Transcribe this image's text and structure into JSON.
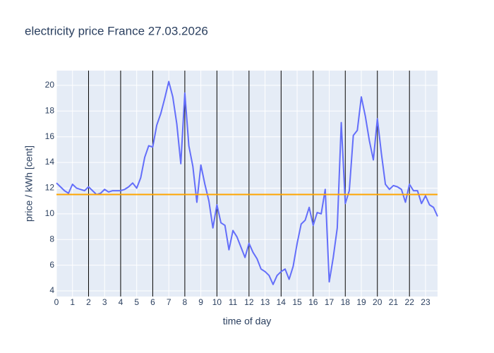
{
  "chart_data": {
    "type": "line",
    "title": "electricity price France 27.03.2026",
    "x_label": "time of day",
    "y_label": "price / kWh [cent]",
    "x": [
      0,
      0.25,
      0.5,
      0.75,
      1,
      1.25,
      1.5,
      1.75,
      2,
      2.25,
      2.5,
      2.75,
      3,
      3.25,
      3.5,
      3.75,
      4,
      4.25,
      4.5,
      4.75,
      5,
      5.25,
      5.5,
      5.75,
      6,
      6.25,
      6.5,
      6.75,
      7,
      7.25,
      7.5,
      7.75,
      8,
      8.25,
      8.5,
      8.75,
      9,
      9.25,
      9.5,
      9.75,
      10,
      10.25,
      10.5,
      10.75,
      11,
      11.25,
      11.5,
      11.75,
      12,
      12.25,
      12.5,
      12.75,
      13,
      13.25,
      13.5,
      13.75,
      14,
      14.25,
      14.5,
      14.75,
      15,
      15.25,
      15.5,
      15.75,
      16,
      16.25,
      16.5,
      16.75,
      17,
      17.25,
      17.5,
      17.75,
      18,
      18.25,
      18.5,
      18.75,
      19,
      19.25,
      19.5,
      19.75,
      20,
      20.25,
      20.5,
      20.75,
      21,
      21.25,
      21.5,
      21.75,
      22,
      22.25,
      22.5,
      22.75,
      23,
      23.25,
      23.5,
      23.75
    ],
    "series": [
      {
        "color": "#636efa",
        "values": [
          12.4,
          12.1,
          11.8,
          11.6,
          12.3,
          12.0,
          11.9,
          11.8,
          12.1,
          11.8,
          11.5,
          11.6,
          11.9,
          11.7,
          11.8,
          11.8,
          11.8,
          11.9,
          12.1,
          12.4,
          12.0,
          12.8,
          14.4,
          15.3,
          15.2,
          16.9,
          17.8,
          19.0,
          20.3,
          19.1,
          17.0,
          13.9,
          19.4,
          15.3,
          13.7,
          10.9,
          13.8,
          12.3,
          11.0,
          8.9,
          10.7,
          9.3,
          9.1,
          7.2,
          8.7,
          8.2,
          7.4,
          6.6,
          7.7,
          7.0,
          6.5,
          5.7,
          5.5,
          5.2,
          4.5,
          5.2,
          5.5,
          5.7,
          4.9,
          5.9,
          7.7,
          9.2,
          9.5,
          10.5,
          9.1,
          10.1,
          10.0,
          11.9,
          4.7,
          6.6,
          8.9,
          17.1,
          10.8,
          11.8,
          16.1,
          16.5,
          19.1,
          17.6,
          15.7,
          14.2,
          17.4,
          14.7,
          12.3,
          11.9,
          12.2,
          12.1,
          11.9,
          10.9,
          12.3,
          11.8,
          11.8,
          10.8,
          11.4,
          10.7,
          10.5,
          9.8
        ]
      }
    ],
    "hline": {
      "value": 11.5,
      "color": "#ffa500"
    },
    "vlines": {
      "values": [
        2,
        4,
        6,
        8,
        10,
        12,
        14,
        16,
        18,
        20,
        22
      ],
      "color": "#000000"
    },
    "xlim": [
      0,
      23.75
    ],
    "ylim": [
      3.56,
      21.15
    ],
    "xticks": [
      0,
      1,
      2,
      3,
      4,
      5,
      6,
      7,
      8,
      9,
      10,
      11,
      12,
      13,
      14,
      15,
      16,
      17,
      18,
      19,
      20,
      21,
      22,
      23
    ],
    "yticks": [
      4,
      6,
      8,
      10,
      12,
      14,
      16,
      18,
      20
    ],
    "grid": true
  }
}
